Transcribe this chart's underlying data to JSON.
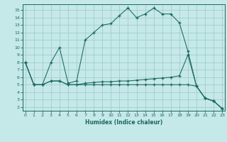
{
  "xlabel": "Humidex (Indice chaleur)",
  "bg_color": "#c5e8e8",
  "grid_color": "#9ec8c8",
  "line_color": "#1a6860",
  "xlim": [
    -0.3,
    23.3
  ],
  "ylim": [
    1.5,
    15.8
  ],
  "xticks": [
    0,
    1,
    2,
    3,
    4,
    5,
    6,
    7,
    8,
    9,
    10,
    11,
    12,
    13,
    14,
    15,
    16,
    17,
    18,
    19,
    20,
    21,
    22,
    23
  ],
  "yticks": [
    2,
    3,
    4,
    5,
    6,
    7,
    8,
    9,
    10,
    11,
    12,
    13,
    14,
    15
  ],
  "line1_x": [
    0,
    1,
    2,
    3,
    4,
    5,
    6,
    7,
    8,
    9,
    10,
    11,
    12,
    13,
    14,
    15,
    16,
    17,
    18,
    19,
    20,
    21,
    22,
    23
  ],
  "line1_y": [
    8,
    5,
    5,
    8,
    10,
    5.2,
    5.5,
    11,
    12,
    13,
    13.2,
    14.3,
    15.3,
    14.0,
    14.5,
    15.3,
    14.5,
    14.5,
    13.3,
    9.5,
    4.8,
    3.2,
    2.8,
    1.8
  ],
  "line2_x": [
    0,
    1,
    2,
    3,
    4,
    5,
    6,
    7,
    8,
    9,
    10,
    11,
    12,
    13,
    14,
    15,
    16,
    17,
    18,
    19,
    20,
    21,
    22,
    23
  ],
  "line2_y": [
    8,
    5,
    5,
    5.5,
    5.5,
    5.0,
    5.0,
    5.2,
    5.3,
    5.4,
    5.4,
    5.5,
    5.5,
    5.6,
    5.7,
    5.8,
    5.9,
    6.0,
    6.2,
    9.0,
    4.8,
    3.2,
    2.8,
    1.8
  ],
  "line3_x": [
    0,
    1,
    2,
    3,
    4,
    5,
    6,
    7,
    8,
    9,
    10,
    11,
    12,
    13,
    14,
    15,
    16,
    17,
    18,
    19,
    20,
    21,
    22,
    23
  ],
  "line3_y": [
    8,
    5,
    5,
    5.5,
    5.5,
    5.0,
    5.0,
    5.0,
    5.0,
    5.0,
    5.0,
    5.0,
    5.0,
    5.0,
    5.0,
    5.0,
    5.0,
    5.0,
    5.0,
    5.0,
    4.8,
    3.2,
    2.8,
    1.8
  ]
}
